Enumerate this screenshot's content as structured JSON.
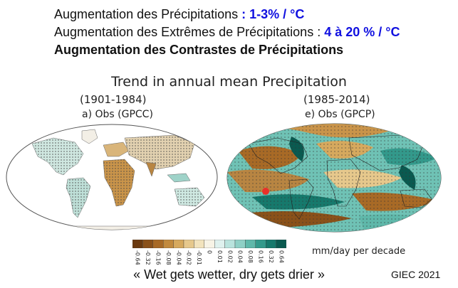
{
  "header": {
    "line1_prefix": "Augmentation des Précipitations ",
    "line1_value": ": 1-3% / °C",
    "line2_prefix": "Augmentation des Extrêmes de Précipitations : ",
    "line2_value": "4 à 20 % / °C",
    "line3": "Augmentation des Contrastes de Précipitations"
  },
  "figure": {
    "title": "Trend in annual mean Precipitation",
    "left_panel": {
      "period": "(1901-1984)",
      "label": "a) Obs (GPCC)"
    },
    "right_panel": {
      "period": "(1985-2014)",
      "label": "e) Obs (GPCP)"
    }
  },
  "colorbar": {
    "unit": "mm/day per decade",
    "ticks": [
      "-0.64",
      "-0.32",
      "-0.16",
      "-0.08",
      "-0.04",
      "-0.02",
      "-0.01",
      "0",
      "0.01",
      "0.02",
      "0.04",
      "0.08",
      "0.16",
      "0.32",
      "0.64"
    ],
    "colors": [
      "#6b3a0f",
      "#8a5119",
      "#a86a26",
      "#c28a3e",
      "#d6a95e",
      "#e6c88c",
      "#f2e3bd",
      "#f7f3e6",
      "#dff1ee",
      "#b9e3dd",
      "#8fd0c6",
      "#5fb8aa",
      "#33998b",
      "#16796c",
      "#0a5a50"
    ]
  },
  "quote": "« Wet gets wetter, dry gets drier »",
  "source": "GIEC 2021"
}
